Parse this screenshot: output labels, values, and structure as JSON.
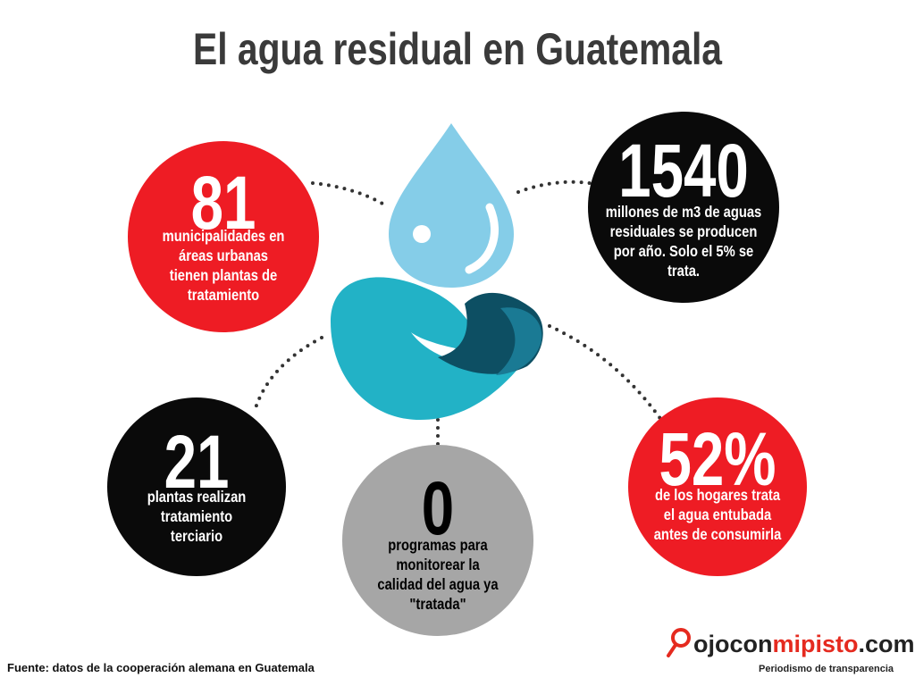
{
  "header": {
    "title": "El agua residual en Guatemala"
  },
  "stats": [
    {
      "value": "81",
      "label": [
        "municipalidades en",
        "áreas urbanas",
        "tienen plantas de",
        "tratamiento"
      ]
    },
    {
      "value": "1540",
      "label": [
        "millones de m3 de aguas",
        "residuales se producen",
        "por año. Solo el 5% se",
        "trata."
      ]
    },
    {
      "value": "21",
      "label": [
        "plantas realizan",
        "tratamiento",
        "terciario"
      ]
    },
    {
      "value": "0",
      "label": [
        "programas para",
        "monitorear la",
        "calidad del agua ya",
        "\"tratada\""
      ]
    },
    {
      "value": "52%",
      "label": [
        "de los hogares trata",
        "el agua entubada",
        "antes de consumirla"
      ]
    }
  ],
  "footer": {
    "source": "Fuente: datos de la cooperación alemana en Guatemala",
    "brand": {
      "parts": [
        "ojocon",
        "mipisto",
        ".com"
      ],
      "tagline": "Periodismo de transparencia"
    }
  }
}
